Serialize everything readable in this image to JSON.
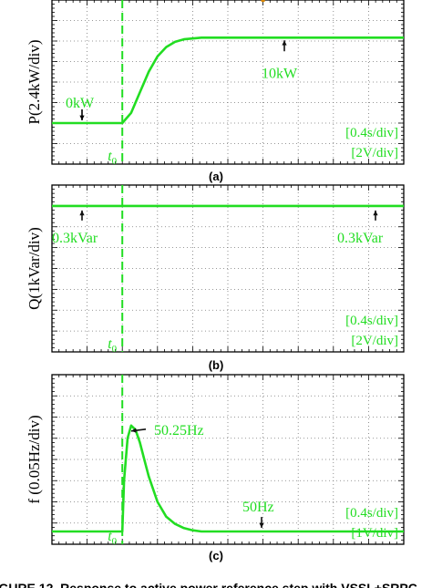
{
  "chart_data": [
    {
      "type": "line",
      "panel_label": "(a)",
      "ylabel": "P(2.4kW/div)",
      "t0_label": "t",
      "t0_sub": "0",
      "scale_labels": [
        "[0.4s/div]",
        "[2V/div]"
      ],
      "annotations": [
        {
          "text": "0kW",
          "arrow": "down",
          "color": "#000000"
        },
        {
          "text": "10kW",
          "arrow": "up",
          "color": "#111111"
        }
      ],
      "x_divs": 10,
      "y_divs": 8,
      "x_range_s": [
        0,
        4.0
      ],
      "y_range_kW": [
        -4.8,
        14.4
      ],
      "t0_s": 0.8,
      "series": [
        {
          "values_desc": "step",
          "x": [
            0,
            0.8,
            0.9,
            1.0,
            1.1,
            1.2,
            1.3,
            1.4,
            1.5,
            1.7,
            2.0,
            4.0
          ],
          "y": [
            0,
            0,
            1.2,
            3.6,
            6.0,
            7.8,
            8.9,
            9.5,
            9.8,
            10.0,
            10.0,
            10.0
          ]
        }
      ]
    },
    {
      "type": "line",
      "panel_label": "(b)",
      "ylabel": "Q(1kVar/div)",
      "t0_label": "t",
      "t0_sub": "0",
      "scale_labels": [
        "[0.4s/div]",
        "[2V/div]"
      ],
      "annotations": [
        {
          "text": "0.3kVar",
          "arrow": "up",
          "color": "#111111"
        },
        {
          "text": "0.3kVar",
          "arrow": "up",
          "color": "#111111"
        }
      ],
      "x_divs": 10,
      "y_divs": 8,
      "x_range_s": [
        0,
        4.0
      ],
      "y_range_kVar": [
        -6.7,
        1.3
      ],
      "t0_s": 0.8,
      "series": [
        {
          "x": [
            0,
            4.0
          ],
          "y": [
            0.3,
            0.3
          ]
        }
      ]
    },
    {
      "type": "line",
      "panel_label": "(c)",
      "ylabel": "f (0.05Hz/div)",
      "t0_label": "t",
      "t0_sub": "0",
      "scale_labels": [
        "[0.4s/div]",
        "[1V/div]"
      ],
      "annotations": [
        {
          "text": "50.25Hz",
          "arrow": "left",
          "color": "#111111"
        },
        {
          "text": "50Hz",
          "arrow": "down",
          "color": "#111111"
        }
      ],
      "x_divs": 10,
      "y_divs": 8,
      "x_range_s": [
        0,
        4.0
      ],
      "y_range_Hz": [
        49.97,
        50.37
      ],
      "t0_s": 0.8,
      "series": [
        {
          "x": [
            0,
            0.8,
            0.82,
            0.86,
            0.9,
            0.95,
            1.0,
            1.05,
            1.1,
            1.2,
            1.3,
            1.4,
            1.5,
            1.6,
            1.7,
            1.8,
            2.0,
            4.0
          ],
          "y": [
            50.0,
            50.0,
            50.12,
            50.22,
            50.25,
            50.24,
            50.21,
            50.17,
            50.13,
            50.07,
            50.035,
            50.018,
            50.008,
            50.003,
            50.0,
            50.0,
            50.0,
            50.0
          ]
        }
      ]
    }
  ],
  "caption_fragment": "FIGURE 12.   Response to active power reference step with VSSL+SRPC"
}
